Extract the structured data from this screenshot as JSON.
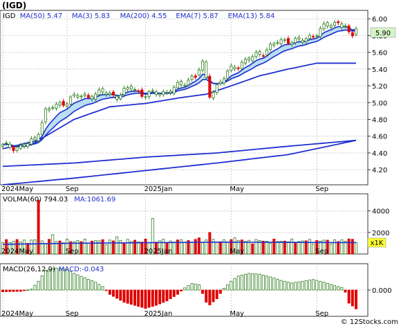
{
  "title": "(IGD)",
  "footer": "© 12Stocks.com",
  "colors": {
    "up": "#2e7d1f",
    "down": "#e00000",
    "ma": "#1f2fd0",
    "band": "#9ed0ee",
    "vol_up_fill": "#ffffff",
    "vol_down_fill": "#dd1111",
    "price_box_bg": "#d6f5c7",
    "x1k_bg": "#ffff33"
  },
  "chart_data": [
    {
      "type": "candlestick",
      "pane": "price",
      "legend": [
        {
          "label": "IGD",
          "value": "",
          "color": "#000000"
        },
        {
          "label": "MA(50)",
          "value": "5.47",
          "color": "#1f2fd0"
        },
        {
          "label": "MA(3)",
          "value": "5.83",
          "color": "#1f2fd0"
        },
        {
          "label": "MA(200)",
          "value": "4.55",
          "color": "#1f2fd0"
        },
        {
          "label": "EMA(7)",
          "value": "5.87",
          "color": "#1f2fd0"
        },
        {
          "label": "EMA(13)",
          "value": "5.84",
          "color": "#1f2fd0"
        }
      ],
      "last_price_label": "5.90",
      "yticks": [
        "4.20",
        "4.40",
        "4.60",
        "4.80",
        "5.00",
        "5.20",
        "5.40",
        "5.60",
        "5.80",
        "6.00"
      ],
      "ylim": [
        4.02,
        6.1
      ],
      "xtick_labels": [
        "2024May",
        "Sep",
        "2025Jan",
        "May",
        "Sep"
      ],
      "xtick_index": [
        0,
        18,
        40,
        64,
        88
      ],
      "n_bars": 100,
      "price_anchors": [
        [
          0,
          4.48
        ],
        [
          5,
          4.47
        ],
        [
          9,
          4.55
        ],
        [
          12,
          4.9
        ],
        [
          16,
          4.98
        ],
        [
          20,
          5.07
        ],
        [
          24,
          5.08
        ],
        [
          28,
          5.12
        ],
        [
          32,
          5.08
        ],
        [
          36,
          5.18
        ],
        [
          39,
          5.1
        ],
        [
          42,
          5.1
        ],
        [
          46,
          5.13
        ],
        [
          50,
          5.21
        ],
        [
          54,
          5.34
        ],
        [
          56,
          5.45
        ],
        [
          58,
          5.1
        ],
        [
          60,
          5.2
        ],
        [
          64,
          5.4
        ],
        [
          68,
          5.5
        ],
        [
          72,
          5.58
        ],
        [
          76,
          5.7
        ],
        [
          80,
          5.75
        ],
        [
          84,
          5.73
        ],
        [
          86,
          5.78
        ],
        [
          90,
          5.9
        ],
        [
          93,
          5.94
        ],
        [
          94,
          5.96
        ],
        [
          96,
          5.92
        ],
        [
          97,
          5.8
        ],
        [
          98,
          5.78
        ],
        [
          99,
          5.9
        ]
      ],
      "ma50_anchors": [
        [
          0,
          4.45
        ],
        [
          10,
          4.55
        ],
        [
          20,
          4.8
        ],
        [
          30,
          4.95
        ],
        [
          40,
          4.99
        ],
        [
          50,
          5.06
        ],
        [
          57,
          5.1
        ],
        [
          64,
          5.2
        ],
        [
          72,
          5.32
        ],
        [
          80,
          5.4
        ],
        [
          88,
          5.47
        ],
        [
          99,
          5.47
        ]
      ],
      "ma200_anchors": [
        [
          0,
          4.02
        ],
        [
          20,
          4.1
        ],
        [
          40,
          4.19
        ],
        [
          60,
          4.28
        ],
        [
          80,
          4.38
        ],
        [
          99,
          4.55
        ]
      ],
      "ma200_display_anchors": [
        [
          0,
          4.24
        ],
        [
          20,
          4.28
        ],
        [
          40,
          4.35
        ],
        [
          60,
          4.4
        ],
        [
          80,
          4.48
        ],
        [
          99,
          4.55
        ]
      ],
      "red_marks": [
        39,
        54,
        58,
        97,
        98
      ]
    },
    {
      "type": "bar",
      "pane": "volume",
      "legend": [
        {
          "label": "VOLMA(60)",
          "value": "794.03",
          "color": "#000000"
        },
        {
          "label": "MA:1061.69",
          "value": "",
          "color": "#1f2fd0"
        }
      ],
      "unit_label": "x1K",
      "yticks": [
        "2000",
        "4000"
      ],
      "ylim": [
        0,
        5200
      ],
      "xtick_labels": [
        "2024May",
        "Sep",
        "2025Jan",
        "May",
        "Sep"
      ],
      "xtick_index": [
        0,
        18,
        40,
        64,
        88
      ],
      "spikes": [
        [
          10,
          5000
        ],
        [
          14,
          1800
        ],
        [
          32,
          1600
        ],
        [
          42,
          3300
        ],
        [
          55,
          1500
        ],
        [
          58,
          2000
        ],
        [
          65,
          1500
        ],
        [
          97,
          1400
        ]
      ],
      "vol_ma_anchors": [
        [
          0,
          900
        ],
        [
          20,
          1000
        ],
        [
          40,
          1050
        ],
        [
          60,
          1100
        ],
        [
          80,
          1080
        ],
        [
          99,
          1061.69
        ]
      ],
      "base_level": 850
    },
    {
      "type": "bar",
      "pane": "macd",
      "legend": [
        {
          "label": "MACD(26,12,9)",
          "value": "",
          "color": "#000000"
        },
        {
          "label": "MACD:-0.043",
          "value": "",
          "color": "#1f2fd0"
        }
      ],
      "yticks": [
        "0.000"
      ],
      "ylim": [
        -0.06,
        0.06
      ],
      "xtick_labels": [
        "2024May",
        "Sep",
        "2025Jan",
        "May",
        "Sep"
      ],
      "xtick_index": [
        0,
        18,
        40,
        64,
        88
      ],
      "macd_anchors": [
        [
          0,
          -0.004
        ],
        [
          5,
          -0.003
        ],
        [
          8,
          0.002
        ],
        [
          10,
          0.02
        ],
        [
          12,
          0.045
        ],
        [
          15,
          0.05
        ],
        [
          18,
          0.047
        ],
        [
          20,
          0.038
        ],
        [
          23,
          0.028
        ],
        [
          26,
          0.018
        ],
        [
          28,
          0.008
        ],
        [
          30,
          -0.01
        ],
        [
          34,
          -0.028
        ],
        [
          37,
          -0.035
        ],
        [
          40,
          -0.042
        ],
        [
          43,
          -0.035
        ],
        [
          46,
          -0.025
        ],
        [
          49,
          -0.01
        ],
        [
          51,
          0.005
        ],
        [
          53,
          0.015
        ],
        [
          55,
          0.012
        ],
        [
          57,
          -0.028
        ],
        [
          58,
          -0.034
        ],
        [
          60,
          -0.02
        ],
        [
          62,
          0.004
        ],
        [
          64,
          0.02
        ],
        [
          66,
          0.032
        ],
        [
          69,
          0.038
        ],
        [
          72,
          0.036
        ],
        [
          75,
          0.03
        ],
        [
          78,
          0.022
        ],
        [
          81,
          0.016
        ],
        [
          84,
          0.02
        ],
        [
          87,
          0.024
        ],
        [
          90,
          0.018
        ],
        [
          93,
          0.01
        ],
        [
          95,
          0.006
        ],
        [
          96,
          -0.005
        ],
        [
          97,
          -0.03
        ],
        [
          99,
          -0.043
        ]
      ]
    }
  ]
}
